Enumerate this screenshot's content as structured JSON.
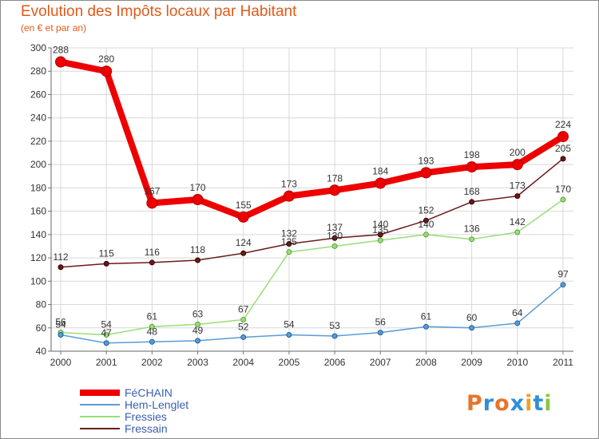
{
  "chart_data": {
    "type": "line",
    "title": "Evolution des Impôts locaux par Habitant",
    "subtitle": "(en € et par an)",
    "xlabel": "",
    "ylabel": "",
    "x": [
      "2000",
      "2001",
      "2002",
      "2003",
      "2004",
      "2005",
      "2006",
      "2007",
      "2008",
      "2009",
      "2010",
      "2011"
    ],
    "ylim": [
      40,
      300
    ],
    "yticks": [
      40,
      60,
      80,
      100,
      120,
      140,
      160,
      180,
      200,
      220,
      240,
      260,
      280,
      300
    ],
    "grid": true,
    "legend_position": "bottom-left",
    "series": [
      {
        "name": "Fressain",
        "color": "#6b1a1a",
        "values": [
          112,
          115,
          116,
          118,
          124,
          132,
          137,
          140,
          152,
          168,
          173,
          205
        ]
      },
      {
        "name": "Fressies",
        "color": "#99dd77",
        "values": [
          56,
          54,
          61,
          63,
          67,
          125,
          130,
          135,
          140,
          136,
          142,
          170
        ]
      },
      {
        "name": "Hem-Lenglet",
        "color": "#5b9bd5",
        "values": [
          54,
          47,
          48,
          49,
          52,
          54,
          53,
          56,
          61,
          60,
          64,
          97
        ]
      },
      {
        "name": "FéCHAIN",
        "color": "#ee0000",
        "values": [
          288,
          280,
          167,
          170,
          155,
          173,
          178,
          184,
          193,
          198,
          200,
          224
        ]
      }
    ],
    "legend_order": [
      "FéCHAIN",
      "Hem-Lenglet",
      "Fressies",
      "Fressain"
    ]
  },
  "logo": {
    "text": [
      "P",
      "r",
      "o",
      "x",
      "i",
      "t",
      "i"
    ],
    "colors": [
      "#e8742a",
      "#2f8fd8",
      "#e8742a",
      "#2f8fd8",
      "#f0a020",
      "#2f8fd8",
      "#8cc63f"
    ]
  }
}
